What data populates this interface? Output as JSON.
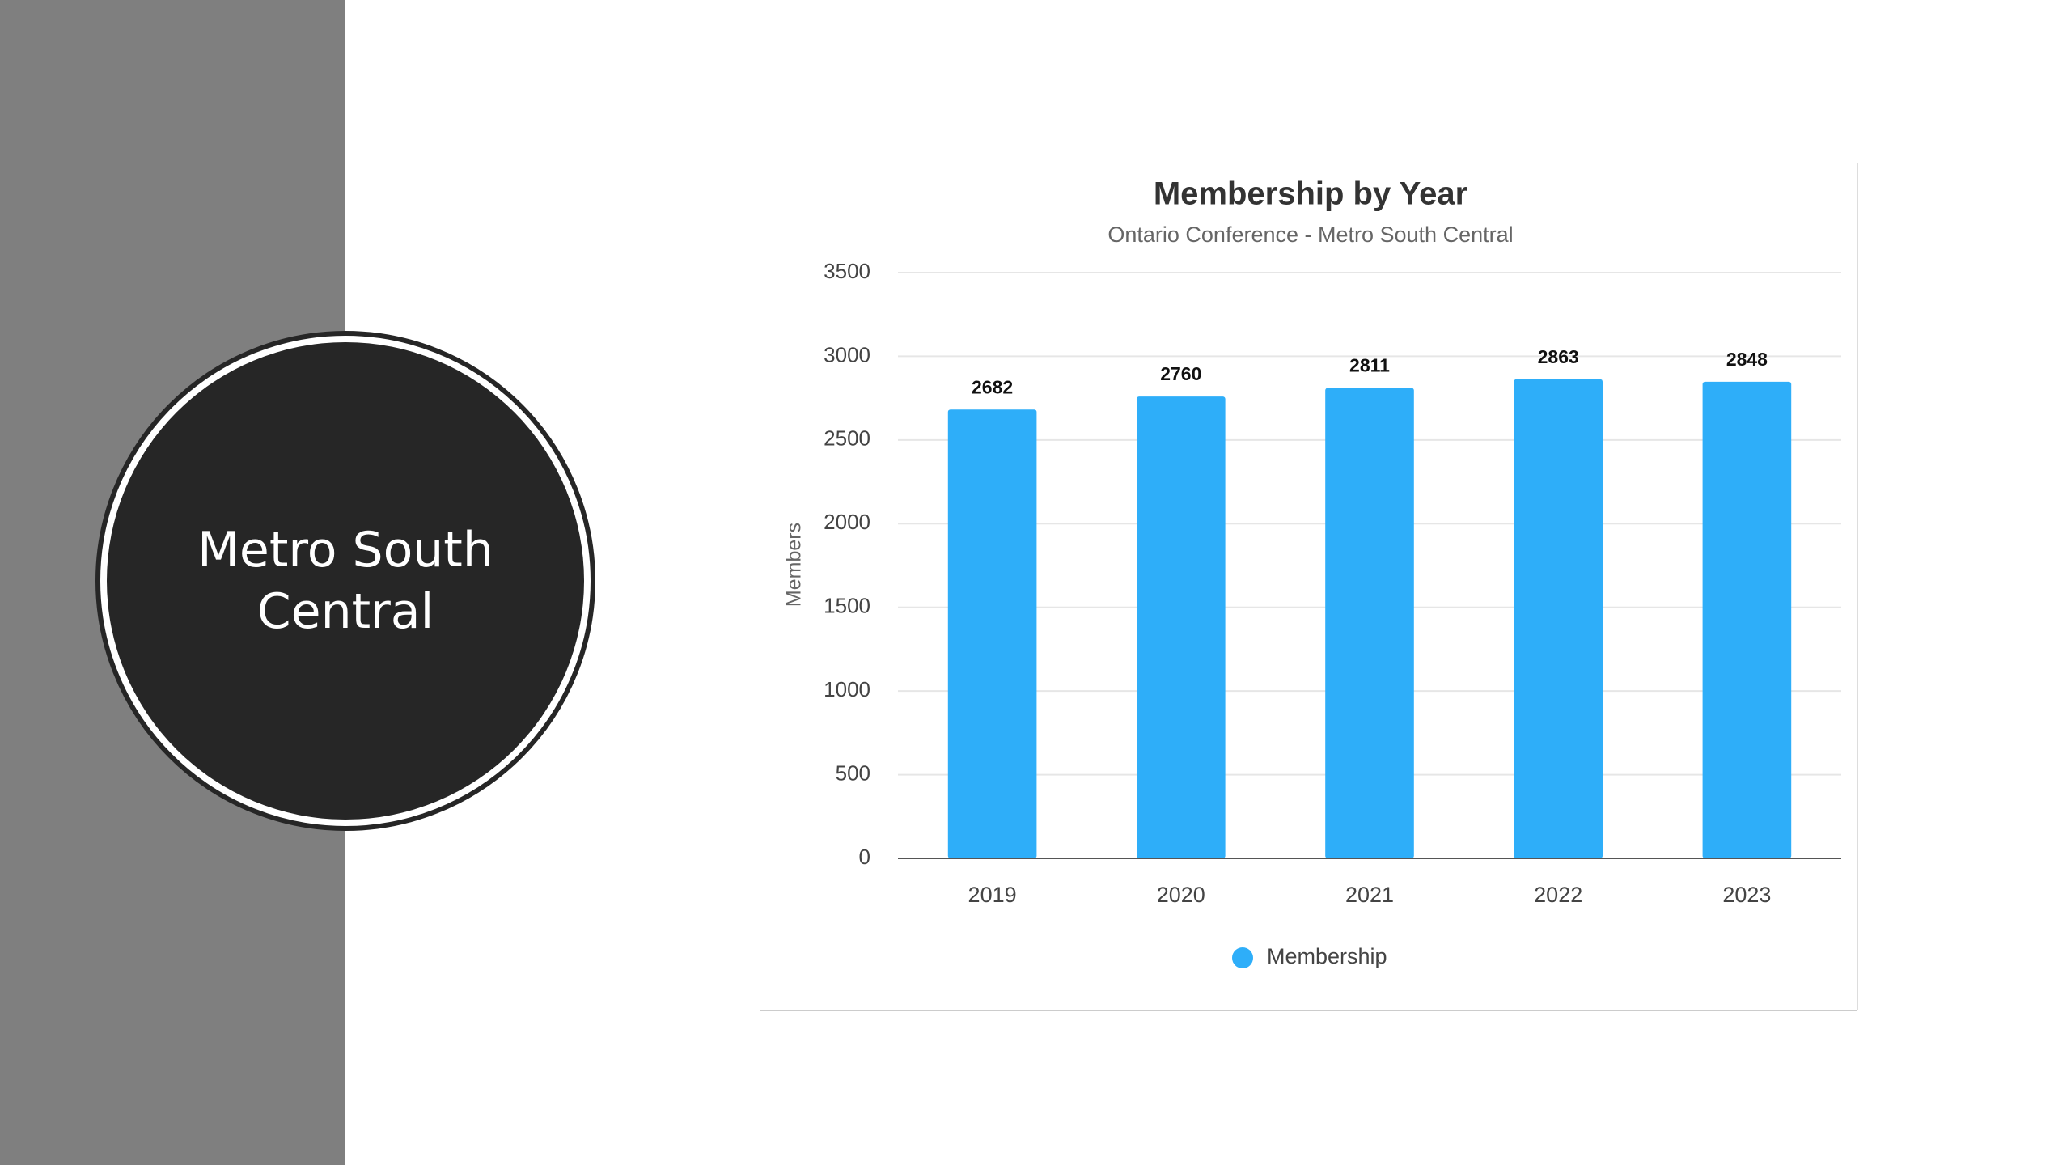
{
  "slide": {
    "title": "Metro South Central"
  },
  "chart_data": {
    "type": "bar",
    "title": "Membership by Year",
    "subtitle": "Ontario Conference - Metro South Central",
    "y_label": "Members",
    "categories": [
      "2019",
      "2020",
      "2021",
      "2022",
      "2023"
    ],
    "series": [
      {
        "name": "Membership",
        "color": "#2eaef9",
        "values": [
          2682,
          2760,
          2811,
          2863,
          2848
        ]
      }
    ],
    "ylim": [
      0,
      3500
    ],
    "yticks": [
      0,
      500,
      1000,
      1500,
      2000,
      2500,
      3000,
      3500
    ],
    "grid": true,
    "data_labels": true,
    "legend": "bottom"
  }
}
